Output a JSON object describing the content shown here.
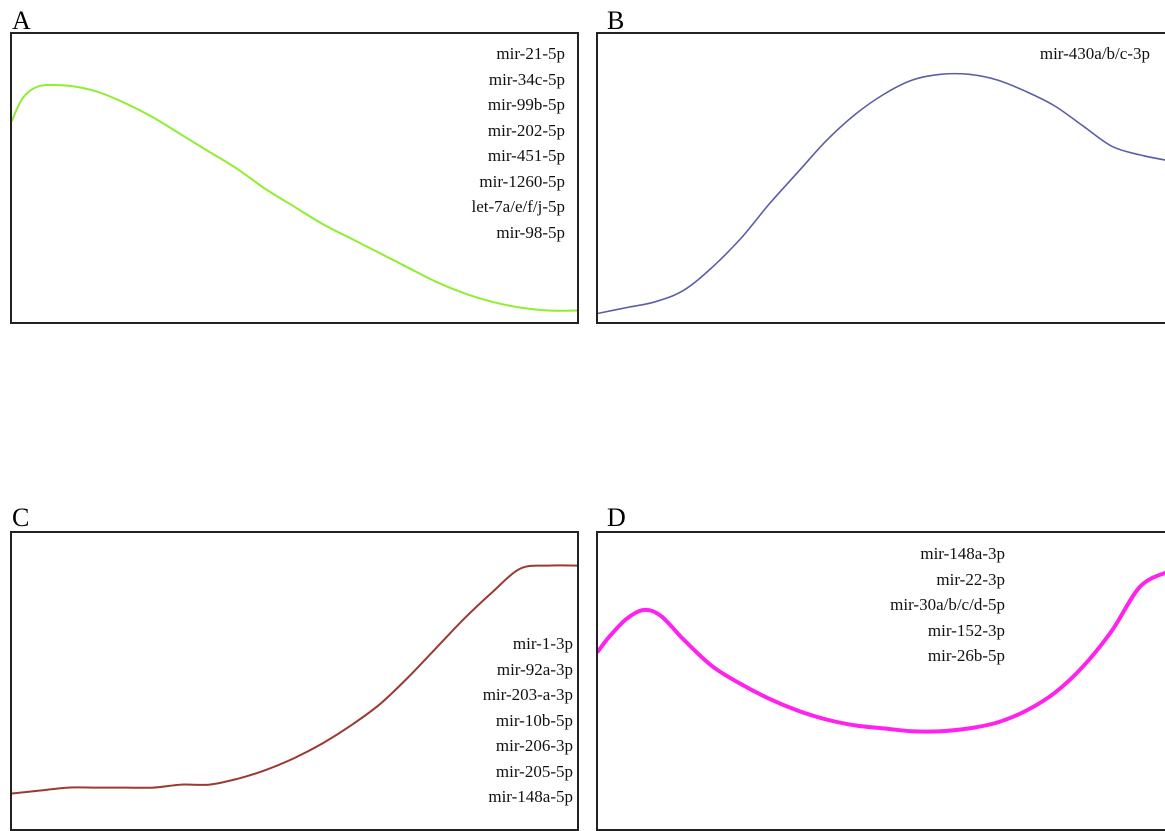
{
  "chart_data": [
    {
      "type": "line",
      "panel": "A",
      "color": "#90EE30",
      "legend_labels": [
        "mir-21-5p",
        "mir-34c-5p",
        "mir-99b-5p",
        "mir-202-5p",
        "mir-451-5p",
        "mir-1260-5p",
        "let-7a/e/f/j-5p",
        "mir-98-5p"
      ],
      "x": [
        0,
        0.02,
        0.05,
        0.1,
        0.15,
        0.2,
        0.25,
        0.3,
        0.35,
        0.4,
        0.45,
        0.5,
        0.55,
        0.6,
        0.65,
        0.7,
        0.75,
        0.8,
        0.85,
        0.9,
        0.95,
        1.0
      ],
      "y": [
        0.7,
        0.78,
        0.82,
        0.82,
        0.8,
        0.76,
        0.71,
        0.65,
        0.59,
        0.53,
        0.46,
        0.4,
        0.34,
        0.29,
        0.24,
        0.19,
        0.14,
        0.1,
        0.07,
        0.05,
        0.04,
        0.04
      ],
      "ylim": [
        0,
        1
      ],
      "xlabel": "",
      "ylabel": "",
      "grid": false
    },
    {
      "type": "line",
      "panel": "B",
      "color": "#5B5EA6",
      "legend_labels": [
        "mir-430a/b/c-3p"
      ],
      "x": [
        0,
        0.05,
        0.1,
        0.15,
        0.2,
        0.25,
        0.3,
        0.35,
        0.4,
        0.45,
        0.5,
        0.55,
        0.6,
        0.65,
        0.7,
        0.75,
        0.8,
        0.85,
        0.9,
        0.95,
        1.0
      ],
      "y": [
        0.03,
        0.05,
        0.07,
        0.11,
        0.19,
        0.29,
        0.41,
        0.52,
        0.63,
        0.72,
        0.79,
        0.84,
        0.86,
        0.86,
        0.84,
        0.8,
        0.75,
        0.68,
        0.61,
        0.58,
        0.56
      ],
      "ylim": [
        0,
        1
      ],
      "xlabel": "",
      "ylabel": "",
      "grid": false
    },
    {
      "type": "line",
      "panel": "C",
      "color": "#9B3A32",
      "legend_labels": [
        "mir-1-3p",
        "mir-92a-3p",
        "mir-203-a-3p",
        "mir-10b-5p",
        "mir-206-3p",
        "mir-205-5p",
        "mir-148a-5p"
      ],
      "x": [
        0,
        0.05,
        0.1,
        0.15,
        0.2,
        0.25,
        0.3,
        0.35,
        0.4,
        0.45,
        0.5,
        0.55,
        0.6,
        0.65,
        0.7,
        0.75,
        0.8,
        0.85,
        0.9,
        0.95,
        1.0
      ],
      "y": [
        0.12,
        0.13,
        0.14,
        0.14,
        0.14,
        0.14,
        0.15,
        0.15,
        0.17,
        0.2,
        0.24,
        0.29,
        0.35,
        0.42,
        0.51,
        0.61,
        0.71,
        0.8,
        0.88,
        0.89,
        0.89
      ],
      "ylim": [
        0,
        1
      ],
      "xlabel": "",
      "ylabel": "",
      "grid": false
    },
    {
      "type": "line",
      "panel": "D",
      "color": "#FF22EE",
      "legend_labels": [
        "mir-148a-3p",
        "mir-22-3p",
        "mir-30a/b/c/d-5p",
        "mir-152-3p",
        "mir-26b-5p"
      ],
      "x": [
        0,
        0.02,
        0.05,
        0.08,
        0.11,
        0.15,
        0.2,
        0.25,
        0.3,
        0.35,
        0.4,
        0.45,
        0.5,
        0.55,
        0.6,
        0.65,
        0.7,
        0.75,
        0.8,
        0.85,
        0.9,
        0.95,
        1.0
      ],
      "y": [
        0.6,
        0.65,
        0.71,
        0.74,
        0.72,
        0.64,
        0.55,
        0.49,
        0.44,
        0.4,
        0.37,
        0.35,
        0.34,
        0.33,
        0.33,
        0.34,
        0.36,
        0.4,
        0.46,
        0.55,
        0.67,
        0.82,
        0.87
      ],
      "ylim": [
        0,
        1
      ],
      "xlabel": "",
      "ylabel": "",
      "grid": false
    }
  ]
}
